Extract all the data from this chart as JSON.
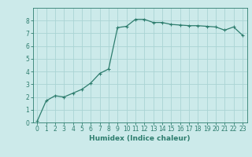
{
  "x": [
    0,
    1,
    2,
    3,
    4,
    5,
    6,
    7,
    8,
    9,
    10,
    11,
    12,
    13,
    14,
    15,
    16,
    17,
    18,
    19,
    20,
    21,
    22,
    23
  ],
  "y": [
    0.1,
    1.7,
    2.1,
    2.0,
    2.3,
    2.6,
    3.1,
    3.85,
    4.2,
    7.45,
    7.55,
    8.1,
    8.1,
    7.85,
    7.85,
    7.7,
    7.65,
    7.6,
    7.6,
    7.55,
    7.5,
    7.25,
    7.5,
    6.85
  ],
  "line_color": "#2e7d6e",
  "marker": "+",
  "marker_size": 3,
  "marker_linewidth": 0.8,
  "background_color": "#cceaea",
  "grid_color": "#aad4d4",
  "xlabel": "Humidex (Indice chaleur)",
  "xlim": [
    -0.5,
    23.5
  ],
  "ylim": [
    0,
    9
  ],
  "yticks": [
    0,
    1,
    2,
    3,
    4,
    5,
    6,
    7,
    8
  ],
  "xticks": [
    0,
    1,
    2,
    3,
    4,
    5,
    6,
    7,
    8,
    9,
    10,
    11,
    12,
    13,
    14,
    15,
    16,
    17,
    18,
    19,
    20,
    21,
    22,
    23
  ],
  "label_fontsize": 6.5,
  "tick_fontsize": 5.5,
  "linewidth": 0.9
}
